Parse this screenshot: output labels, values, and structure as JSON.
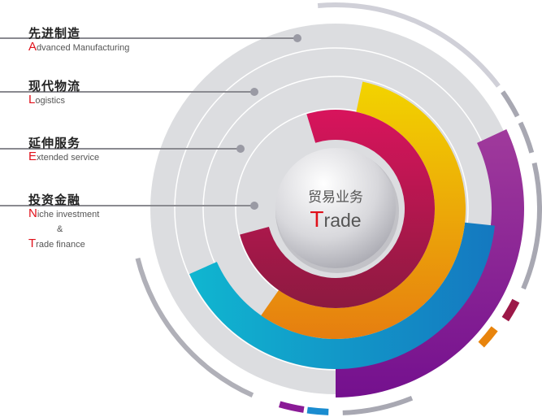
{
  "center": {
    "zh": "贸易业务",
    "en_initial": "T",
    "en_rest": "rade"
  },
  "items": [
    {
      "zh": "先进制造",
      "en_initial": "A",
      "en_rest": "dvanced Manufacturing"
    },
    {
      "zh": "现代物流",
      "en_initial": "L",
      "en_rest": "ogistics"
    },
    {
      "zh": "延伸服务",
      "en_initial": "E",
      "en_rest": "xtended service"
    },
    {
      "zh": "投资金融",
      "en_initial": "N",
      "en_rest": "iche investment",
      "amp": "&",
      "en2_initial": "T",
      "en2_rest": "rade finance"
    }
  ],
  "colors": {
    "crimson": "#9c1848",
    "gold": "#f0a800",
    "blue": "#1a9cc8",
    "purple": "#8a1a96",
    "accent_red": "#e0101a",
    "disk": "#dcdde0"
  }
}
